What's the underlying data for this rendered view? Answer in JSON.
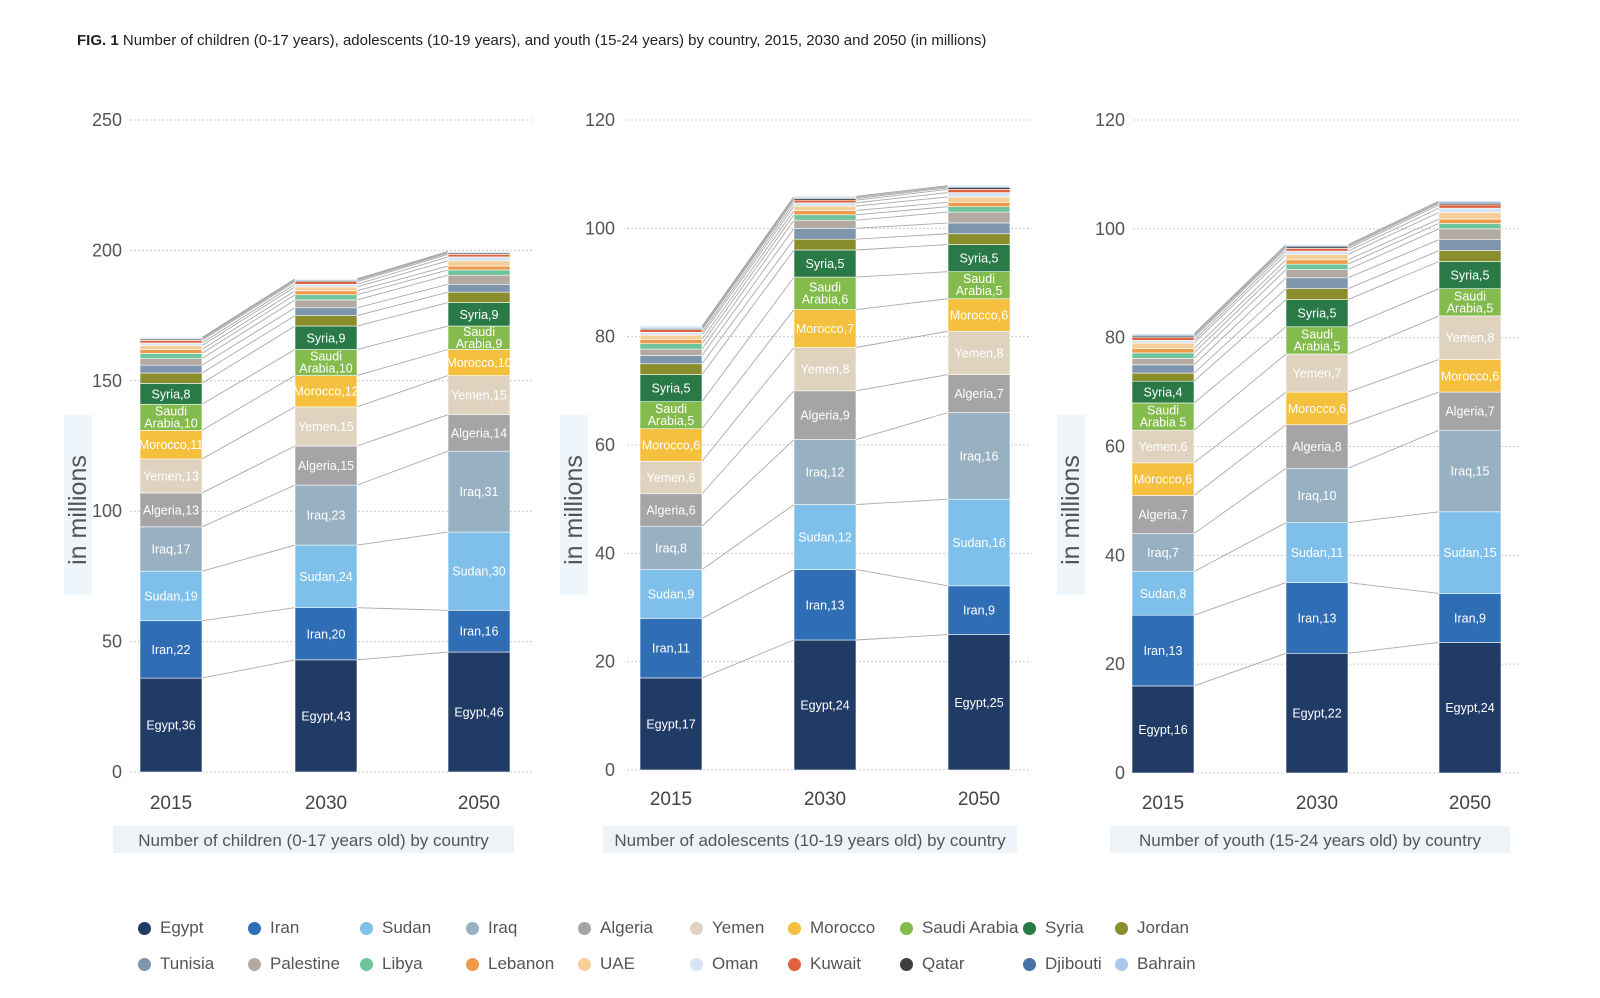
{
  "title": {
    "prefix": "FIG. 1",
    "text": "Number of children (0-17 years), adolescents (10-19 years), and youth (15-24 years) by country, 2015, 2030 and 2050 (in millions)"
  },
  "colors": {
    "Egypt": "#1f3b66",
    "Iran": "#2f6db5",
    "Sudan": "#7fc0ea",
    "Iraq": "#98b1c2",
    "Algeria": "#a6a4a6",
    "Yemen": "#dfd3c0",
    "Morocco": "#f4c03d",
    "Saudi Arabia": "#84bb4d",
    "Syria": "#2a7a48",
    "Jordan": "#8a8d2c",
    "Tunisia": "#7d95ad",
    "Palestine": "#b3aaa2",
    "Libya": "#6fc49d",
    "Lebanon": "#ee9a4c",
    "UAE": "#f6cf98",
    "Oman": "#d4e4f2",
    "Kuwait": "#e0613e",
    "Qatar": "#3f3f3f",
    "Djibouti": "#4a6fa5",
    "Bahrain": "#a8c8ec"
  },
  "legend": [
    "Egypt",
    "Iran",
    "Sudan",
    "Iraq",
    "Algeria",
    "Yemen",
    "Morocco",
    "Saudi Arabia",
    "Syria",
    "Jordan",
    "Tunisia",
    "Palestine",
    "Libya",
    "Lebanon",
    "UAE",
    "Oman",
    "Kuwait",
    "Qatar",
    "Djibouti",
    "Bahrain"
  ],
  "chart_data": [
    {
      "type": "bar",
      "stacked": true,
      "xlabel": "Number of children (0-17 years old) by country",
      "ylabel": "in millions",
      "ylim": [
        0,
        250
      ],
      "yticks": [
        0,
        50,
        100,
        150,
        200,
        250
      ],
      "categories": [
        "2015",
        "2030",
        "2050"
      ],
      "series": [
        {
          "name": "Egypt",
          "values": [
            36,
            43,
            46
          ],
          "labels": [
            "Egypt,36",
            "Egypt,43",
            "Egypt,46"
          ]
        },
        {
          "name": "Iran",
          "values": [
            22,
            20,
            16
          ],
          "labels": [
            "Iran,22",
            "Iran,20",
            "Iran,16"
          ]
        },
        {
          "name": "Sudan",
          "values": [
            19,
            24,
            30
          ],
          "labels": [
            "Sudan,19",
            "Sudan,24",
            "Sudan,30"
          ]
        },
        {
          "name": "Iraq",
          "values": [
            17,
            23,
            31
          ],
          "labels": [
            "Iraq,17",
            "Iraq,23",
            "Iraq,31"
          ]
        },
        {
          "name": "Algeria",
          "values": [
            13,
            15,
            14
          ],
          "labels": [
            "Algeria,13",
            "Algeria,15",
            "Algeria,14"
          ]
        },
        {
          "name": "Yemen",
          "values": [
            13,
            15,
            15
          ],
          "labels": [
            "Yemen,13",
            "Yemen,15",
            "Yemen,15"
          ]
        },
        {
          "name": "Morocco",
          "values": [
            11,
            12,
            10
          ],
          "labels": [
            "Morocco,11",
            "Morocco,12",
            "Morocco,10"
          ]
        },
        {
          "name": "Saudi Arabia",
          "values": [
            10,
            10,
            9
          ],
          "labels": [
            "Saudi Arabia,10",
            "Saudi Arabia,10",
            "Saudi Arabia,9"
          ]
        },
        {
          "name": "Syria",
          "values": [
            8,
            9,
            9
          ],
          "labels": [
            "Syria,8",
            "Syria,9",
            "Syria,9"
          ]
        },
        {
          "name": "Jordan",
          "values": [
            4,
            4,
            4
          ]
        },
        {
          "name": "Tunisia",
          "values": [
            3,
            3,
            3
          ]
        },
        {
          "name": "Palestine",
          "values": [
            2.5,
            3,
            3.5
          ]
        },
        {
          "name": "Libya",
          "values": [
            2,
            2,
            2
          ]
        },
        {
          "name": "Lebanon",
          "values": [
            1.5,
            1.5,
            1.5
          ]
        },
        {
          "name": "UAE",
          "values": [
            1.5,
            1.5,
            2
          ]
        },
        {
          "name": "Oman",
          "values": [
            1,
            1,
            1.5
          ]
        },
        {
          "name": "Kuwait",
          "values": [
            1,
            1,
            1
          ]
        },
        {
          "name": "Qatar",
          "values": [
            0.5,
            0.5,
            0.5
          ]
        },
        {
          "name": "Djibouti",
          "values": [
            0.3,
            0.3,
            0.3
          ]
        },
        {
          "name": "Bahrain",
          "values": [
            0.3,
            0.3,
            0.3
          ]
        }
      ]
    },
    {
      "type": "bar",
      "stacked": true,
      "xlabel": "Number of adolescents (10-19 years old) by country",
      "ylabel": "in millions",
      "ylim": [
        0,
        120
      ],
      "yticks": [
        0,
        20,
        40,
        60,
        80,
        100,
        120
      ],
      "categories": [
        "2015",
        "2030",
        "2050"
      ],
      "series": [
        {
          "name": "Egypt",
          "values": [
            17,
            24,
            25
          ],
          "labels": [
            "Egypt,17",
            "Egypt,24",
            "Egypt,25"
          ]
        },
        {
          "name": "Iran",
          "values": [
            11,
            13,
            9
          ],
          "labels": [
            "Iran,11",
            "Iran,13",
            "Iran,9"
          ]
        },
        {
          "name": "Sudan",
          "values": [
            9,
            12,
            16
          ],
          "labels": [
            "Sudan,9",
            "Sudan,12",
            "Sudan,16"
          ]
        },
        {
          "name": "Iraq",
          "values": [
            8,
            12,
            16
          ],
          "labels": [
            "Iraq,8",
            "Iraq,12",
            "Iraq,16"
          ]
        },
        {
          "name": "Algeria",
          "values": [
            6,
            9,
            7
          ],
          "labels": [
            "Algeria,6",
            "Algeria,9",
            "Algeria,7"
          ]
        },
        {
          "name": "Yemen",
          "values": [
            6,
            8,
            8
          ],
          "labels": [
            "Yemen,6",
            "Yemen,8",
            "Yemen,8"
          ]
        },
        {
          "name": "Morocco",
          "values": [
            6,
            7,
            6
          ],
          "labels": [
            "Morocco,6",
            "Morocco,7",
            "Morocco,6"
          ]
        },
        {
          "name": "Saudi Arabia",
          "values": [
            5,
            6,
            5
          ],
          "labels": [
            "Saudi Arabia,5",
            "Saudi Arabia,6",
            "Saudi Arabia,5"
          ]
        },
        {
          "name": "Syria",
          "values": [
            5,
            5,
            5
          ],
          "labels": [
            "Syria,5",
            "Syria,5",
            "Syria,5"
          ]
        },
        {
          "name": "Jordan",
          "values": [
            2,
            2,
            2
          ]
        },
        {
          "name": "Tunisia",
          "values": [
            1.5,
            2,
            2
          ]
        },
        {
          "name": "Palestine",
          "values": [
            1.2,
            1.5,
            2
          ]
        },
        {
          "name": "Libya",
          "values": [
            1,
            1,
            1
          ]
        },
        {
          "name": "Lebanon",
          "values": [
            0.8,
            0.8,
            0.8
          ]
        },
        {
          "name": "UAE",
          "values": [
            0.8,
            0.8,
            1
          ]
        },
        {
          "name": "Oman",
          "values": [
            0.5,
            0.6,
            0.8
          ]
        },
        {
          "name": "Kuwait",
          "values": [
            0.5,
            0.5,
            0.6
          ]
        },
        {
          "name": "Qatar",
          "values": [
            0.2,
            0.3,
            0.3
          ]
        },
        {
          "name": "Djibouti",
          "values": [
            0.2,
            0.2,
            0.2
          ]
        },
        {
          "name": "Bahrain",
          "values": [
            0.2,
            0.2,
            0.2
          ]
        }
      ]
    },
    {
      "type": "bar",
      "stacked": true,
      "xlabel": "Number of youth (15-24 years old) by country",
      "ylabel": "in millions",
      "ylim": [
        0,
        120
      ],
      "yticks": [
        0,
        20,
        40,
        60,
        80,
        100,
        120
      ],
      "categories": [
        "2015",
        "2030",
        "2050"
      ],
      "series": [
        {
          "name": "Egypt",
          "values": [
            16,
            22,
            24
          ],
          "labels": [
            "Egypt,16",
            "Egypt,22",
            "Egypt,24"
          ]
        },
        {
          "name": "Iran",
          "values": [
            13,
            13,
            9
          ],
          "labels": [
            "Iran,13",
            "Iran,13",
            "Iran,9"
          ]
        },
        {
          "name": "Sudan",
          "values": [
            8,
            11,
            15
          ],
          "labels": [
            "Sudan,8",
            "Sudan,11",
            "Sudan,15"
          ]
        },
        {
          "name": "Iraq",
          "values": [
            7,
            10,
            15
          ],
          "labels": [
            "Iraq,7",
            "Iraq,10",
            "Iraq,15"
          ]
        },
        {
          "name": "Algeria",
          "values": [
            7,
            8,
            7
          ],
          "labels": [
            "Algeria,7",
            "Algeria,8",
            "Algeria,7"
          ]
        },
        {
          "name": "Morocco",
          "values": [
            6,
            6,
            6
          ],
          "labels": [
            "Morocco,6",
            "Morocco,6",
            "Morocco,6"
          ]
        },
        {
          "name": "Yemen",
          "values": [
            6,
            7,
            8
          ],
          "labels": [
            "Yemen,6",
            "Yemen,7",
            "Yemen,8"
          ]
        },
        {
          "name": "Saudi Arabia",
          "values": [
            5,
            5,
            5
          ],
          "labels": [
            "Saudi Arabia 5",
            "Saudi Arabia,5",
            "Saudi Arabia,5"
          ]
        },
        {
          "name": "Syria",
          "values": [
            4,
            5,
            5
          ],
          "labels": [
            "Syria,4",
            "Syria,5",
            "Syria,5"
          ]
        },
        {
          "name": "Jordan",
          "values": [
            1.5,
            2,
            2
          ]
        },
        {
          "name": "Tunisia",
          "values": [
            1.5,
            2,
            2
          ]
        },
        {
          "name": "Palestine",
          "values": [
            1.2,
            1.5,
            2
          ]
        },
        {
          "name": "Libya",
          "values": [
            1,
            1,
            1
          ]
        },
        {
          "name": "Lebanon",
          "values": [
            0.8,
            0.8,
            0.8
          ]
        },
        {
          "name": "UAE",
          "values": [
            1,
            1,
            1.2
          ]
        },
        {
          "name": "Oman",
          "values": [
            0.5,
            0.6,
            0.8
          ]
        },
        {
          "name": "Kuwait",
          "values": [
            0.5,
            0.5,
            0.6
          ]
        },
        {
          "name": "Qatar",
          "values": [
            0.3,
            0.3,
            0.3
          ]
        },
        {
          "name": "Djibouti",
          "values": [
            0.2,
            0.2,
            0.2
          ]
        },
        {
          "name": "Bahrain",
          "values": [
            0.2,
            0.2,
            0.2
          ]
        }
      ]
    }
  ]
}
